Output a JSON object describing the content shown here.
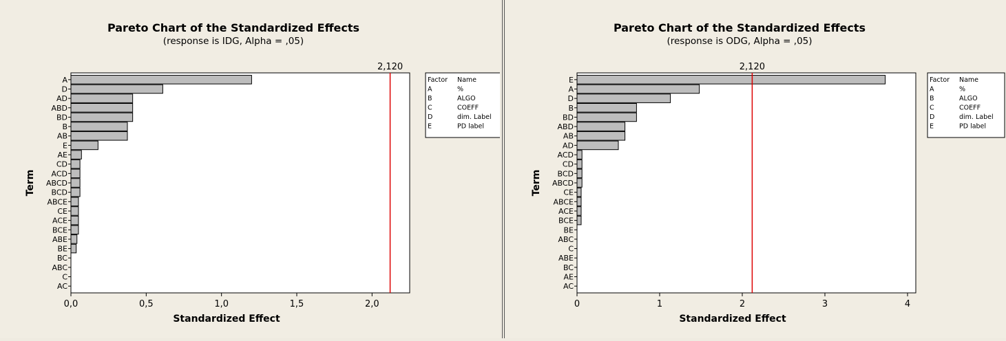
{
  "colors": {
    "background": "#f1ede3",
    "plot_area": "#ffffff",
    "bar": "#bdbdbd",
    "bar_edge": "#000000",
    "ref_line": "#dd0000"
  },
  "chart_data": [
    {
      "type": "bar",
      "orientation": "horizontal",
      "title": "Pareto Chart of the Standardized Effects",
      "subtitle": "(response is IDG, Alpha = ,05)",
      "xlabel": "Standardized Effect",
      "ylabel": "Term",
      "xlim": [
        0,
        2.25
      ],
      "xticks": [
        0,
        0.5,
        1.0,
        1.5,
        2.0
      ],
      "xtick_labels": [
        "0,0",
        "0,5",
        "1,0",
        "1,5",
        "2,0"
      ],
      "reference_line": {
        "value": 2.12,
        "label": "2,120"
      },
      "categories": [
        "A",
        "D",
        "AD",
        "ABD",
        "BD",
        "B",
        "AB",
        "E",
        "AE",
        "CD",
        "ACD",
        "ABCD",
        "BCD",
        "ABCE",
        "CE",
        "ACE",
        "BCE",
        "ABE",
        "BE",
        "BC",
        "ABC",
        "C",
        "AC"
      ],
      "values": [
        1.2,
        0.61,
        0.41,
        0.41,
        0.41,
        0.375,
        0.375,
        0.18,
        0.07,
        0.06,
        0.06,
        0.06,
        0.06,
        0.05,
        0.05,
        0.05,
        0.05,
        0.04,
        0.035,
        0.0,
        0.0,
        0.0,
        0.0
      ],
      "grid": false,
      "legend": {
        "placement": "right",
        "header": [
          "Factor",
          "Name"
        ],
        "rows": [
          [
            "A",
            "%"
          ],
          [
            "B",
            "ALGO"
          ],
          [
            "C",
            "COEFF"
          ],
          [
            "D",
            "dim. Label"
          ],
          [
            "E",
            "PD label"
          ]
        ]
      }
    },
    {
      "type": "bar",
      "orientation": "horizontal",
      "title": "Pareto Chart of the Standardized Effects",
      "subtitle": "(response is ODG, Alpha = ,05)",
      "xlabel": "Standardized Effect",
      "ylabel": "Term",
      "xlim": [
        0,
        4.1
      ],
      "xticks": [
        0,
        1,
        2,
        3,
        4
      ],
      "xtick_labels": [
        "0",
        "1",
        "2",
        "3",
        "4"
      ],
      "reference_line": {
        "value": 2.12,
        "label": "2,120"
      },
      "categories": [
        "E",
        "A",
        "D",
        "B",
        "BD",
        "ABD",
        "AB",
        "AD",
        "ACD",
        "CD",
        "BCD",
        "ABCD",
        "CE",
        "ABCE",
        "ACE",
        "BCE",
        "BE",
        "ABC",
        "C",
        "ABE",
        "BC",
        "AE",
        "AC"
      ],
      "values": [
        3.73,
        1.48,
        1.13,
        0.72,
        0.72,
        0.58,
        0.58,
        0.5,
        0.06,
        0.06,
        0.06,
        0.06,
        0.05,
        0.05,
        0.05,
        0.05,
        0.0,
        0.0,
        0.0,
        0.0,
        0.0,
        0.0,
        0.0
      ],
      "grid": false,
      "legend": {
        "placement": "right",
        "header": [
          "Factor",
          "Name"
        ],
        "rows": [
          [
            "A",
            "%"
          ],
          [
            "B",
            "ALGO"
          ],
          [
            "C",
            "COEFF"
          ],
          [
            "D",
            "dim. Label"
          ],
          [
            "E",
            "PD label"
          ]
        ]
      }
    }
  ]
}
